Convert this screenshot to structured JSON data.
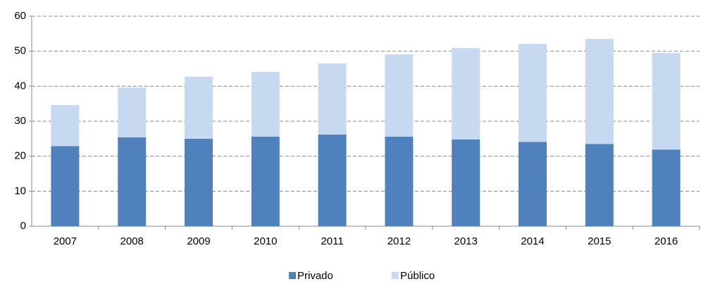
{
  "chart_data": {
    "type": "stacked_bar",
    "categories": [
      "2007",
      "2008",
      "2009",
      "2010",
      "2011",
      "2012",
      "2013",
      "2014",
      "2015",
      "2016"
    ],
    "series": [
      {
        "name": "Privado",
        "color": "#4f81bd",
        "values": [
          22.9,
          25.4,
          25.0,
          25.6,
          26.2,
          25.6,
          24.8,
          24.1,
          23.5,
          21.9
        ]
      },
      {
        "name": "Público",
        "color": "#c6d9f1",
        "values": [
          11.7,
          14.2,
          17.7,
          18.5,
          20.3,
          23.5,
          26.1,
          28.0,
          30.0,
          27.6
        ]
      }
    ],
    "ylim": [
      0,
      60
    ],
    "yticks": [
      0,
      10,
      20,
      30,
      40,
      50,
      60
    ],
    "grid": true,
    "legend": "bottom"
  }
}
